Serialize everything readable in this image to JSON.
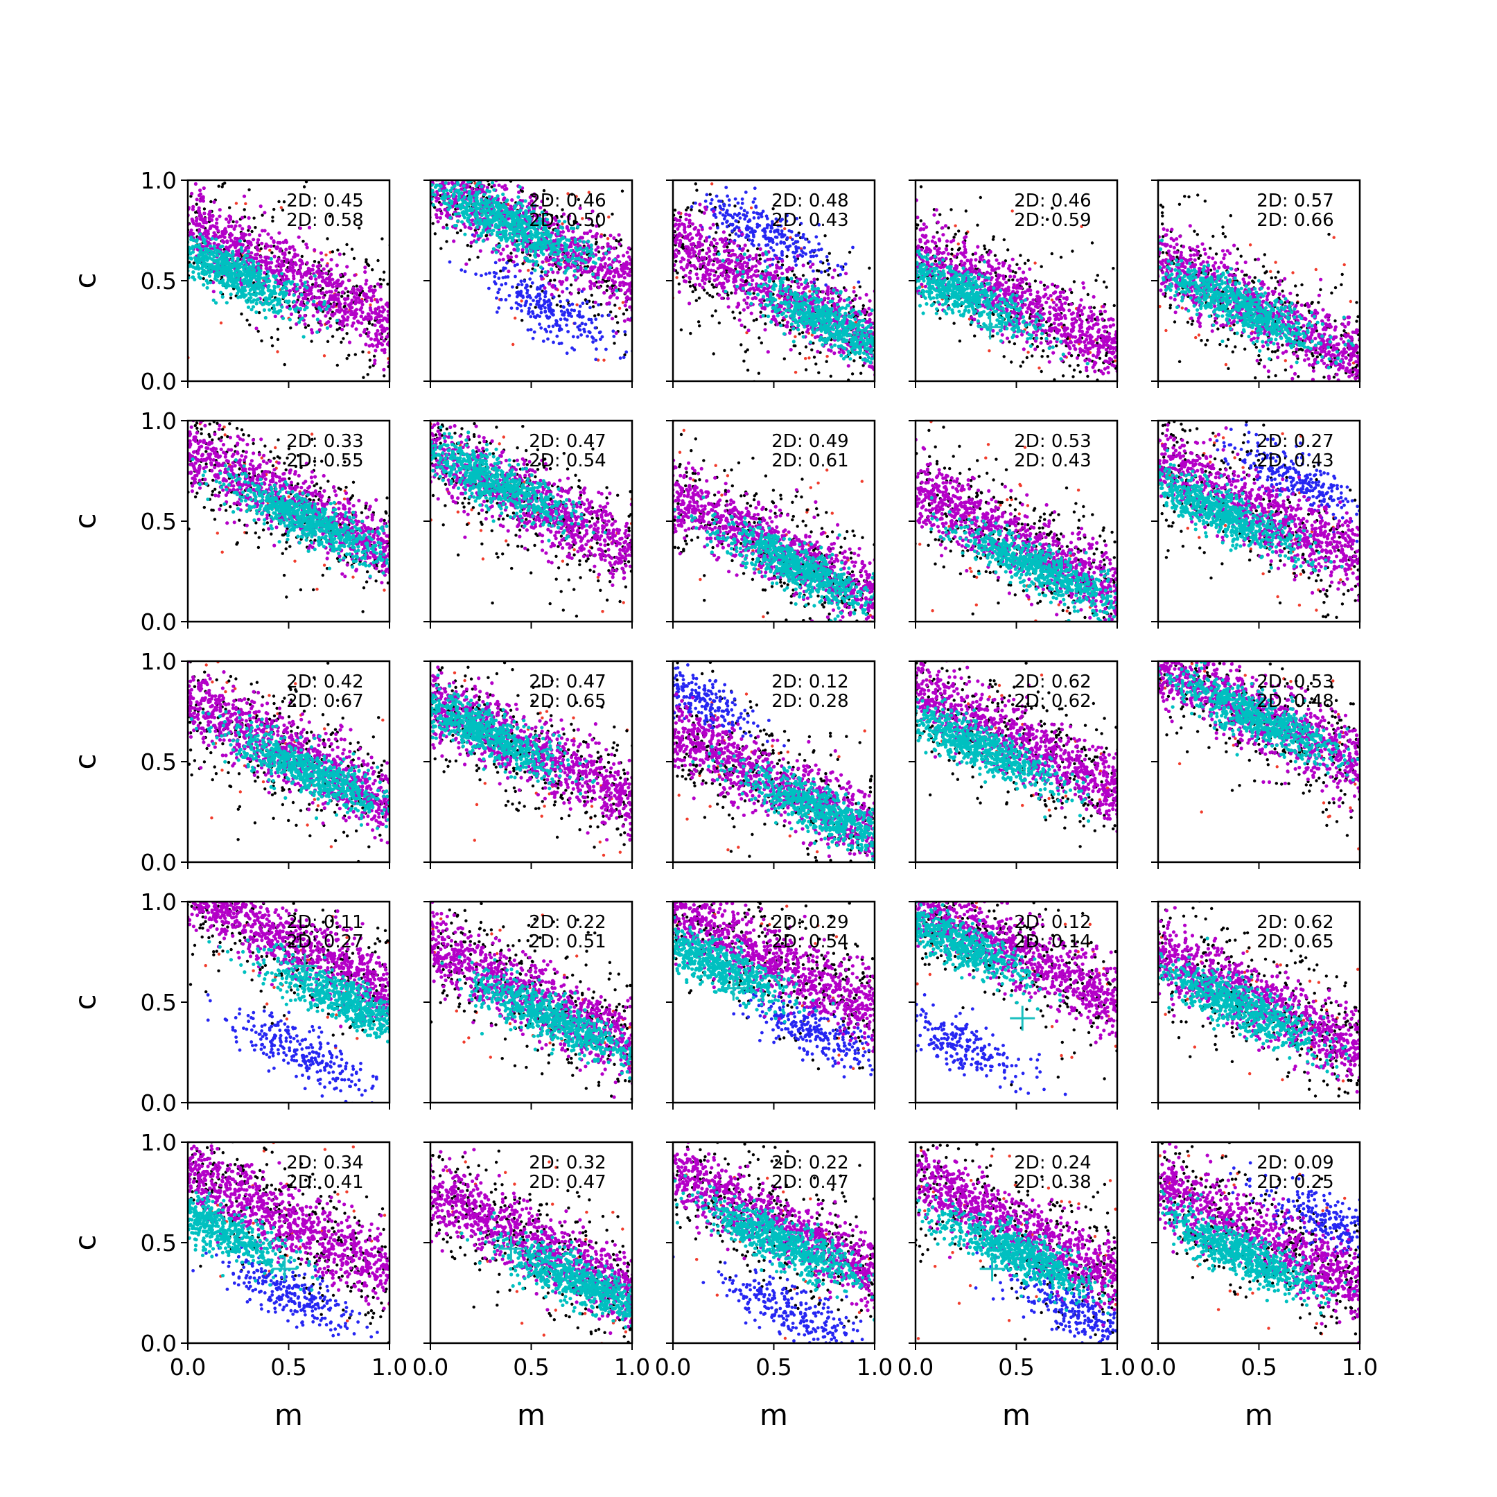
{
  "chart_data": {
    "type": "scatter",
    "grid": false,
    "rows": 5,
    "cols": 5,
    "xlabel": "m",
    "ylabel": "c",
    "xlim": [
      0.0,
      1.0
    ],
    "ylim": [
      0.0,
      1.0
    ],
    "xticks": [
      "0.0",
      "0.5",
      "1.0"
    ],
    "yticks": [
      "0.0",
      "0.5",
      "1.0"
    ],
    "colors": {
      "red": "#f03c2c",
      "black": "#000000",
      "blue": "#2626f2",
      "magenta": "#b400c8",
      "cyan": "#00c0c0",
      "marker": "#19bfbf"
    },
    "panels": [
      {
        "row": 0,
        "col": 0,
        "annotation": [
          "2D: 0.45",
          "2D: 0.58"
        ],
        "cyan_center": [
          0.2,
          0.55
        ],
        "band_intercept": 0.78,
        "blue": null,
        "marker": null
      },
      {
        "row": 0,
        "col": 1,
        "annotation": [
          "2D: 0.46",
          "2D: 0.50"
        ],
        "cyan_center": [
          0.4,
          0.78
        ],
        "band_intercept": 0.98,
        "blue": [
          0.6,
          0.35
        ],
        "marker": null
      },
      {
        "row": 0,
        "col": 2,
        "annotation": [
          "2D: 0.48",
          "2D: 0.43"
        ],
        "cyan_center": [
          0.8,
          0.28
        ],
        "band_intercept": 0.7,
        "blue": [
          0.45,
          0.75
        ],
        "marker": null
      },
      {
        "row": 0,
        "col": 3,
        "annotation": [
          "2D: 0.46",
          "2D: 0.59"
        ],
        "cyan_center": [
          0.2,
          0.45
        ],
        "band_intercept": 0.65,
        "blue": null,
        "marker": [
          0.37,
          0.27
        ]
      },
      {
        "row": 0,
        "col": 4,
        "annotation": [
          "2D: 0.57",
          "2D: 0.66"
        ],
        "cyan_center": [
          0.4,
          0.38
        ],
        "band_intercept": 0.6,
        "blue": null,
        "marker": null
      },
      {
        "row": 1,
        "col": 0,
        "annotation": [
          "2D: 0.33",
          "2D: 0.55"
        ],
        "cyan_center": [
          0.6,
          0.5
        ],
        "band_intercept": 0.85,
        "blue": null,
        "marker": null
      },
      {
        "row": 1,
        "col": 1,
        "annotation": [
          "2D: 0.47",
          "2D: 0.54"
        ],
        "cyan_center": [
          0.3,
          0.7
        ],
        "band_intercept": 0.85,
        "blue": null,
        "marker": null
      },
      {
        "row": 1,
        "col": 2,
        "annotation": [
          "2D: 0.49",
          "2D: 0.61"
        ],
        "cyan_center": [
          0.6,
          0.28
        ],
        "band_intercept": 0.62,
        "blue": null,
        "marker": null
      },
      {
        "row": 1,
        "col": 3,
        "annotation": [
          "2D: 0.53",
          "2D: 0.43"
        ],
        "cyan_center": [
          0.6,
          0.27
        ],
        "band_intercept": 0.65,
        "blue": null,
        "marker": null
      },
      {
        "row": 1,
        "col": 4,
        "annotation": [
          "2D: 0.27",
          "2D: 0.43"
        ],
        "cyan_center": [
          0.3,
          0.55
        ],
        "band_intercept": 0.8,
        "blue": [
          0.7,
          0.7
        ],
        "marker": null
      },
      {
        "row": 2,
        "col": 0,
        "annotation": [
          "2D: 0.42",
          "2D: 0.67"
        ],
        "cyan_center": [
          0.6,
          0.45
        ],
        "band_intercept": 0.8,
        "blue": null,
        "marker": null
      },
      {
        "row": 2,
        "col": 1,
        "annotation": [
          "2D: 0.47",
          "2D: 0.65"
        ],
        "cyan_center": [
          0.25,
          0.65
        ],
        "band_intercept": 0.8,
        "blue": null,
        "marker": null
      },
      {
        "row": 2,
        "col": 2,
        "annotation": [
          "2D: 0.12",
          "2D: 0.28"
        ],
        "cyan_center": [
          0.75,
          0.25
        ],
        "band_intercept": 0.65,
        "blue": [
          0.1,
          0.83
        ],
        "marker": null
      },
      {
        "row": 2,
        "col": 3,
        "annotation": [
          "2D: 0.62",
          "2D: 0.62"
        ],
        "cyan_center": [
          0.3,
          0.58
        ],
        "band_intercept": 0.85,
        "blue": null,
        "marker": null
      },
      {
        "row": 2,
        "col": 4,
        "annotation": [
          "2D: 0.53",
          "2D: 0.48"
        ],
        "cyan_center": [
          0.5,
          0.72
        ],
        "band_intercept": 0.98,
        "blue": null,
        "marker": null
      },
      {
        "row": 3,
        "col": 0,
        "annotation": [
          "2D: 0.11",
          "2D: 0.27"
        ],
        "cyan_center": [
          0.8,
          0.5
        ],
        "band_intercept": 1.05,
        "blue": [
          0.55,
          0.25
        ],
        "marker": [
          0.58,
          0.68
        ]
      },
      {
        "row": 3,
        "col": 1,
        "annotation": [
          "2D: 0.22",
          "2D: 0.51"
        ],
        "cyan_center": [
          0.6,
          0.42
        ],
        "band_intercept": 0.78,
        "blue": null,
        "marker": null
      },
      {
        "row": 3,
        "col": 2,
        "annotation": [
          "2D: 0.29",
          "2D: 0.54"
        ],
        "cyan_center": [
          0.15,
          0.72
        ],
        "band_intercept": 0.95,
        "blue": [
          0.7,
          0.35
        ],
        "marker": [
          0.3,
          0.57
        ]
      },
      {
        "row": 3,
        "col": 3,
        "annotation": [
          "2D: 0.12",
          "2D: 0.14"
        ],
        "cyan_center": [
          0.15,
          0.82
        ],
        "band_intercept": 1.0,
        "blue": [
          0.2,
          0.3
        ],
        "marker": [
          0.53,
          0.42
        ]
      },
      {
        "row": 3,
        "col": 4,
        "annotation": [
          "2D: 0.62",
          "2D: 0.65"
        ],
        "cyan_center": [
          0.4,
          0.48
        ],
        "band_intercept": 0.75,
        "blue": null,
        "marker": null
      },
      {
        "row": 4,
        "col": 0,
        "annotation": [
          "2D: 0.34",
          "2D: 0.41"
        ],
        "cyan_center": [
          0.08,
          0.6
        ],
        "band_intercept": 0.85,
        "blue": [
          0.5,
          0.25
        ],
        "marker": [
          0.48,
          0.37
        ]
      },
      {
        "row": 4,
        "col": 1,
        "annotation": [
          "2D: 0.32",
          "2D: 0.47"
        ],
        "cyan_center": [
          0.75,
          0.3
        ],
        "band_intercept": 0.75,
        "blue": null,
        "marker": [
          0.4,
          0.47
        ]
      },
      {
        "row": 4,
        "col": 2,
        "annotation": [
          "2D: 0.22",
          "2D: 0.47"
        ],
        "cyan_center": [
          0.55,
          0.5
        ],
        "band_intercept": 0.85,
        "blue": [
          0.6,
          0.15
        ],
        "marker": null
      },
      {
        "row": 4,
        "col": 3,
        "annotation": [
          "2D: 0.24",
          "2D: 0.38"
        ],
        "cyan_center": [
          0.5,
          0.45
        ],
        "band_intercept": 0.82,
        "blue": [
          0.8,
          0.15
        ],
        "marker": [
          0.38,
          0.37
        ]
      },
      {
        "row": 4,
        "col": 4,
        "annotation": [
          "2D: 0.09",
          "2D: 0.25"
        ],
        "cyan_center": [
          0.4,
          0.45
        ],
        "band_intercept": 0.78,
        "blue": [
          0.85,
          0.6
        ],
        "marker": null
      }
    ]
  }
}
